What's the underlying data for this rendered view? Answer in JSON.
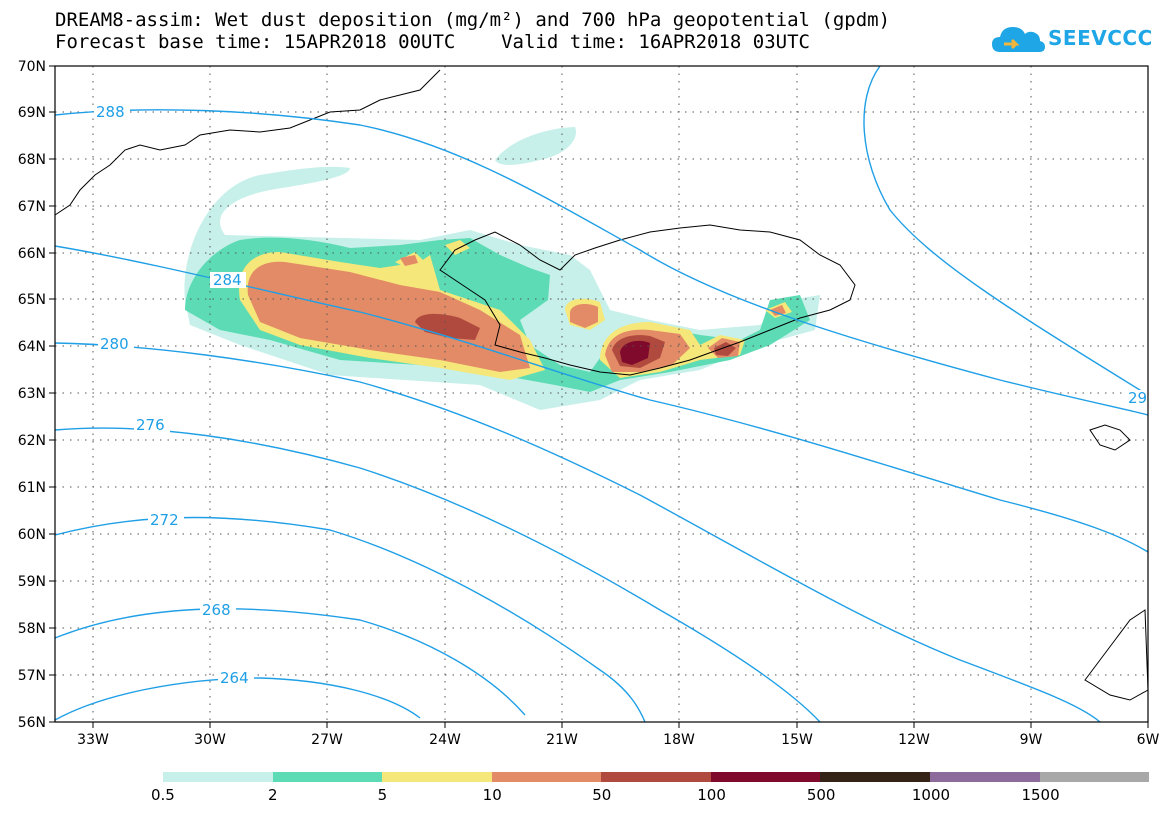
{
  "header": {
    "title_line1": "DREAM8-assim: Wet dust deposition (mg/m²) and 700 hPa geopotential (gpdm)",
    "title_line2": "Forecast base time: 15APR2018 00UTC    Valid time: 16APR2018 03UTC"
  },
  "logo": {
    "text": "SEEVCCC",
    "icon": "cloud-icon"
  },
  "map": {
    "lat_labels": [
      "70N",
      "69N",
      "68N",
      "67N",
      "66N",
      "65N",
      "64N",
      "63N",
      "62N",
      "61N",
      "60N",
      "59N",
      "58N",
      "57N",
      "56N"
    ],
    "lon_labels": [
      "33W",
      "30W",
      "27W",
      "24W",
      "21W",
      "18W",
      "15W",
      "12W",
      "9W",
      "6W"
    ],
    "contour_labels": [
      "288",
      "284",
      "280",
      "276",
      "272",
      "268",
      "264",
      "29"
    ],
    "grid": "dotted"
  },
  "legend": {
    "colors": [
      "#c6f0e9",
      "#5cdbb4",
      "#f6e77a",
      "#e38b66",
      "#b04a3e",
      "#800a2b",
      "#352318",
      "#8c6a9c",
      "#a8a8a8"
    ],
    "labels": [
      "0.5",
      "2",
      "5",
      "10",
      "50",
      "100",
      "500",
      "1000",
      "1500"
    ]
  },
  "colors": {
    "contour": "#1f9fe6",
    "coast": "#000000"
  }
}
